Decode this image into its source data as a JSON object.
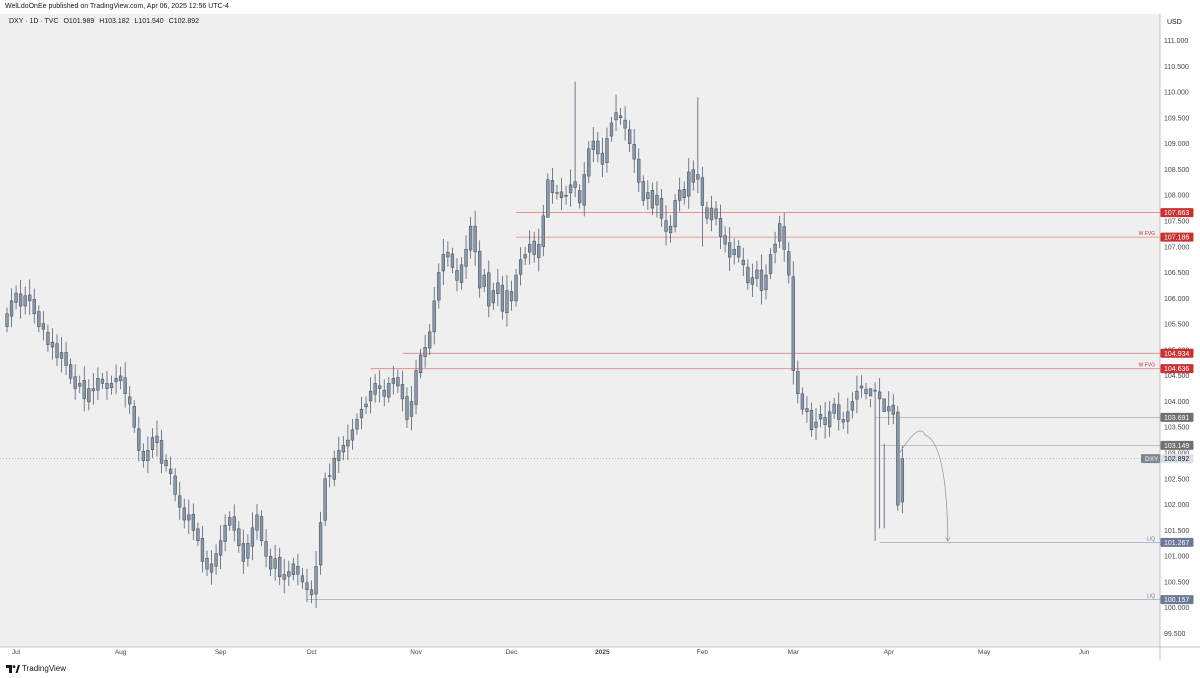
{
  "header": {
    "published": "WelLdoOnEe published on TradingView.com, Apr 06, 2025 12:56 UTC-4"
  },
  "legend": {
    "symbol": "DXY · 1D · TVC",
    "open": "O101.989",
    "high": "H103.182",
    "low": "L101.540",
    "close": "C102.892"
  },
  "footer": {
    "brand": "TradingView"
  },
  "colors": {
    "background": "#efefef",
    "candle_body": "#8a97a8",
    "candle_border": "#3e4a5a",
    "wick": "#555f6d",
    "level_red": "#e08585",
    "badge_red": "#c83232",
    "level_blue": "#9aa9bf",
    "level_grey": "#b0b0b0",
    "badge_grey": "#707070",
    "badge_slate": "#6a7a95",
    "axis_text": "#444444"
  },
  "chart_data": {
    "type": "candlestick",
    "symbol": "DXY",
    "currency_label": "USD",
    "y_ticks": [
      "111.000",
      "110.500",
      "110.000",
      "109.500",
      "109.000",
      "108.500",
      "108.000",
      "107.500",
      "107.000",
      "106.500",
      "106.000",
      "105.500",
      "105.000",
      "104.500",
      "104.000",
      "103.500",
      "103.000",
      "102.500",
      "102.000",
      "101.500",
      "101.000",
      "100.500",
      "100.000",
      "99.500"
    ],
    "ylim": [
      99.2,
      111.4
    ],
    "x_labels": [
      {
        "label": "Jul",
        "bar": 2,
        "bold": false
      },
      {
        "label": "Aug",
        "bar": 25,
        "bold": false
      },
      {
        "label": "Sep",
        "bar": 47,
        "bold": false
      },
      {
        "label": "Oct",
        "bar": 67,
        "bold": false
      },
      {
        "label": "Nov",
        "bar": 90,
        "bold": false
      },
      {
        "label": "Dec",
        "bar": 111,
        "bold": false
      },
      {
        "label": "2025",
        "bar": 131,
        "bold": true
      },
      {
        "label": "Feb",
        "bar": 153,
        "bold": false
      },
      {
        "label": "Mar",
        "bar": 173,
        "bold": false
      },
      {
        "label": "Apr",
        "bar": 194,
        "bold": false
      },
      {
        "label": "May",
        "bar": 215,
        "bold": false
      },
      {
        "label": "Jun",
        "bar": 237,
        "bold": false
      }
    ],
    "bars_in_view": 248,
    "closes": [
      105.7,
      105.95,
      106.1,
      105.85,
      106.05,
      105.95,
      105.7,
      105.45,
      105.4,
      105.1,
      105.15,
      104.85,
      104.95,
      104.7,
      104.45,
      104.25,
      104.35,
      104.05,
      104.25,
      104.25,
      104.45,
      104.35,
      104.25,
      104.35,
      104.45,
      104.4,
      104.15,
      103.95,
      103.5,
      103.05,
      102.85,
      103.05,
      103.3,
      103.2,
      102.8,
      102.75,
      102.6,
      102.2,
      101.95,
      101.7,
      101.8,
      101.5,
      101.3,
      100.9,
      100.75,
      100.85,
      101.05,
      101.3,
      101.6,
      101.75,
      101.5,
      101.2,
      100.9,
      101.25,
      101.55,
      101.8,
      101.3,
      101.0,
      100.75,
      100.95,
      100.6,
      100.55,
      100.7,
      100.85,
      100.65,
      100.5,
      100.35,
      100.25,
      100.8,
      101.65,
      102.5,
      102.55,
      102.9,
      103.05,
      103.15,
      103.25,
      103.45,
      103.65,
      103.85,
      103.95,
      104.2,
      104.35,
      104.25,
      104.1,
      104.35,
      104.45,
      104.3,
      104.05,
      103.65,
      104.0,
      104.6,
      104.9,
      105.05,
      105.35,
      105.95,
      106.5,
      106.85,
      106.8,
      106.6,
      106.35,
      106.65,
      106.95,
      107.4,
      106.9,
      106.2,
      106.45,
      105.85,
      106.15,
      106.3,
      105.75,
      106.15,
      105.95,
      106.45,
      106.75,
      106.85,
      107.05,
      106.85,
      107.05,
      107.6,
      108.3,
      108.05,
      108.05,
      107.95,
      108.0,
      108.2,
      108.15,
      107.85,
      108.4,
      108.9,
      109.05,
      108.8,
      108.6,
      109.1,
      109.4,
      109.6,
      109.5,
      109.3,
      109.0,
      108.7,
      108.25,
      107.9,
      108.05,
      107.75,
      108.0,
      107.55,
      107.3,
      107.4,
      107.9,
      108.1,
      107.95,
      108.45,
      108.25,
      108.4,
      107.8,
      107.55,
      107.75,
      107.55,
      107.2,
      107.05,
      106.8,
      106.95,
      106.8,
      106.65,
      106.3,
      106.4,
      106.55,
      106.15,
      106.45,
      106.85,
      107.05,
      107.45,
      106.95,
      106.45,
      104.6,
      104.15,
      103.85,
      103.8,
      103.45,
      103.6,
      103.75,
      103.55,
      103.8,
      103.95,
      103.65,
      103.6,
      103.8,
      104.0,
      104.2,
      104.3,
      104.15,
      104.25,
      104.2,
      104.05,
      103.8,
      103.9,
      103.75,
      101.99,
      102.89
    ],
    "highs": {
      "125": 110.2,
      "134": 109.95,
      "152": 109.9,
      "190": 104.05,
      "193": 103.18
    },
    "lows": {
      "119": 107.7,
      "131": 108.35,
      "153": 107.0,
      "191": 101.3,
      "192": 101.54,
      "193": 101.54
    },
    "levels": [
      {
        "name": "level-107-663",
        "value": 107.663,
        "label": "107.663",
        "color": "red",
        "start_bar": 112,
        "note": ""
      },
      {
        "name": "level-107-186",
        "value": 107.186,
        "label": "107.186",
        "color": "red",
        "start_bar": 112,
        "note": "W FVG"
      },
      {
        "name": "level-104-934",
        "value": 104.934,
        "label": "104.934",
        "color": "red",
        "start_bar": 87,
        "note": ""
      },
      {
        "name": "level-104-636",
        "value": 104.636,
        "label": "104.636",
        "color": "red",
        "start_bar": 80,
        "note": "W FVG"
      },
      {
        "name": "level-103-691",
        "value": 103.691,
        "label": "103.691",
        "color": "grey",
        "start_bar": 191,
        "note": ""
      },
      {
        "name": "level-103-149",
        "value": 103.149,
        "label": "103.149",
        "color": "grey",
        "start_bar": 192,
        "note": ""
      },
      {
        "name": "level-101-267",
        "value": 101.267,
        "label": "101.267",
        "color": "slate",
        "start_bar": 192,
        "note": "LIQ"
      },
      {
        "name": "level-100-157",
        "value": 100.157,
        "label": "100.157",
        "color": "slate",
        "start_bar": 66,
        "note": "LIQ"
      }
    ],
    "last_price": {
      "symbol": "DXY",
      "value": 102.892,
      "label": "102.892"
    },
    "projection": {
      "from_bar": 196,
      "from": 102.95,
      "peak_bar": 202,
      "peak": 103.35,
      "to_bar": 207,
      "to": 101.27
    }
  }
}
